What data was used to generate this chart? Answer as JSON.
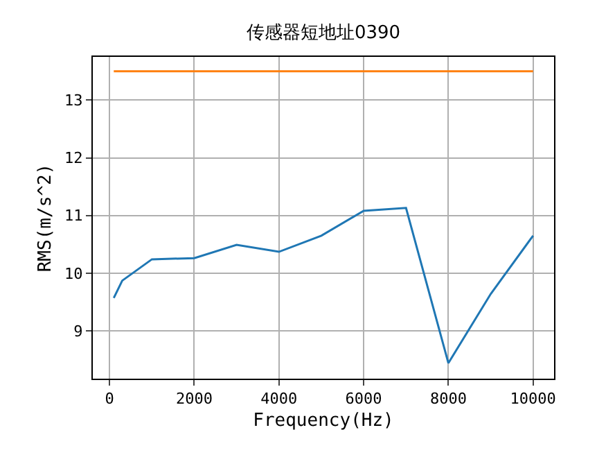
{
  "chart_data": {
    "type": "line",
    "title": "传感器短地址0390",
    "xlabel": "Frequency(Hz)",
    "ylabel": "RMS(m/s^2)",
    "x": [
      100,
      300,
      1000,
      2000,
      3000,
      4000,
      5000,
      6000,
      7000,
      8000,
      9000,
      10000
    ],
    "series": [
      {
        "color": "#1f77b4",
        "values": [
          9.57,
          9.87,
          10.24,
          10.26,
          10.49,
          10.37,
          10.65,
          11.08,
          11.13,
          8.44,
          9.64,
          10.65
        ]
      },
      {
        "color": "#ff7f0e",
        "x": [
          100,
          10000
        ],
        "values": [
          13.5,
          13.5
        ]
      }
    ],
    "xlim": [
      -395,
      10495
    ],
    "xticks": [
      0,
      2000,
      4000,
      6000,
      8000,
      10000
    ],
    "ylim": [
      8.17,
      13.75
    ],
    "yticks": [
      9,
      10,
      11,
      12,
      13
    ],
    "grid": true
  }
}
